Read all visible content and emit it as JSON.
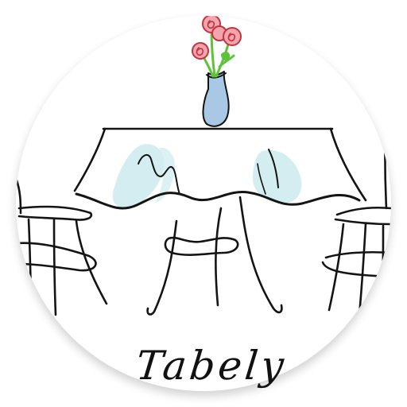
{
  "app": {
    "name": "Tabely"
  },
  "colors": {
    "ink": "#141414",
    "glass_blue": "#a9c8e6",
    "cloth_tint": "#d3edf1",
    "flower_pink": "#f2a5ad",
    "flower_red": "#c3323e",
    "stem_green": "#5cc33a",
    "background": "#ffffff"
  },
  "illustration": {
    "subject": "table-with-vase-and-chairs"
  }
}
